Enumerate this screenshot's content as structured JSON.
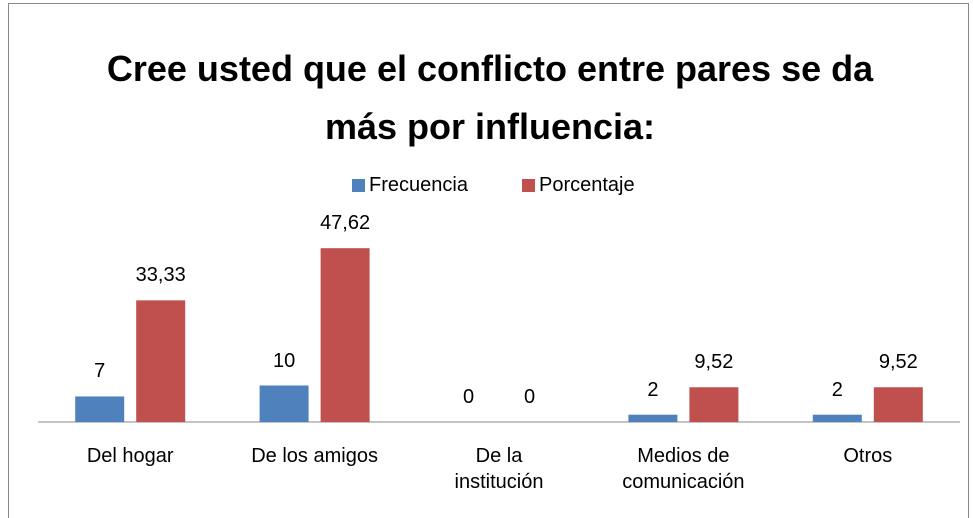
{
  "chart_data": {
    "type": "bar",
    "title": "Cree usted que el conflicto entre pares se da más por influencia:",
    "categories": [
      "Del hogar",
      "De los amigos",
      "De la institución",
      "Medios de comunicación",
      "Otros"
    ],
    "series": [
      {
        "name": "Frecuencia",
        "color": "#4f81bd",
        "values": [
          7,
          10,
          0,
          2,
          2
        ]
      },
      {
        "name": "Porcentaje",
        "color": "#c0504d",
        "values": [
          33.33,
          47.62,
          0,
          9.52,
          9.52
        ],
        "value_labels": [
          "33,33",
          "47,62",
          "0",
          "9,52",
          "9,52"
        ]
      }
    ],
    "ylim": [
      0,
      60
    ],
    "legend": "top"
  }
}
